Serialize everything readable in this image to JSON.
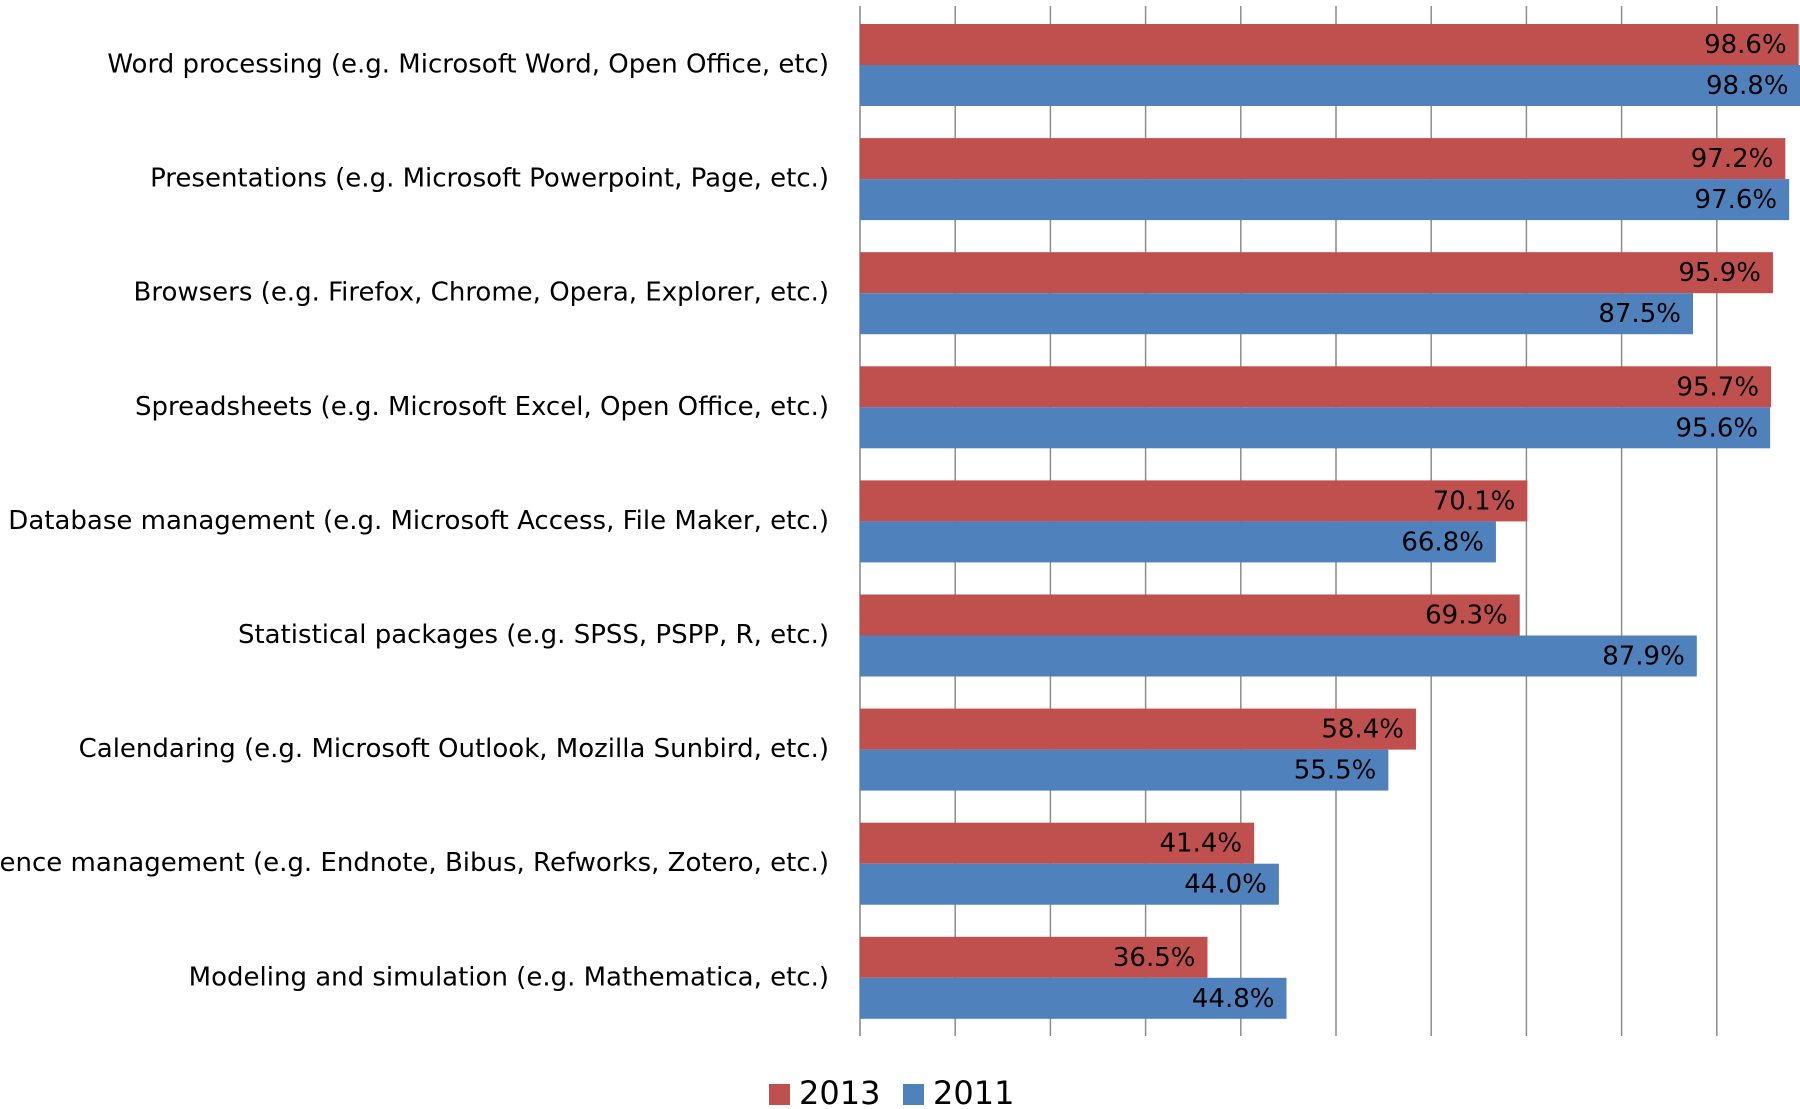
{
  "chart_data": {
    "type": "bar",
    "orientation": "horizontal",
    "categories": [
      "Word processing (e.g. Microsoft Word, Open Office, etc)",
      "Presentations (e.g. Microsoft Powerpoint, Page, etc.)",
      "Browsers (e.g. Firefox, Chrome, Opera, Explorer, etc.)",
      "Spreadsheets (e.g. Microsoft Excel, Open Office, etc.)",
      "Database management (e.g. Microsoft Access, File Maker, etc.)",
      "Statistical packages (e.g. SPSS, PSPP, R, etc.)",
      "Calendaring (e.g. Microsoft Outlook, Mozilla Sunbird, etc.)",
      "rence management (e.g. Endnote, Bibus, Refworks, Zotero, etc.)",
      "Modeling and simulation (e.g. Mathematica, etc.)"
    ],
    "series": [
      {
        "name": "2013",
        "color": "#c0504d",
        "values": [
          98.6,
          97.2,
          95.9,
          95.7,
          70.1,
          69.3,
          58.4,
          41.4,
          36.5
        ],
        "value_labels": [
          "98.6%",
          "97.2%",
          "95.9%",
          "95.7%",
          "70.1%",
          "69.3%",
          "58.4%",
          "41.4%",
          "36.5%"
        ]
      },
      {
        "name": "2011",
        "color": "#4f81bd",
        "values": [
          98.8,
          97.6,
          87.5,
          95.6,
          66.8,
          87.9,
          55.5,
          44.0,
          44.8
        ],
        "value_labels": [
          "98.8%",
          "97.6%",
          "87.5%",
          "95.6%",
          "66.8%",
          "87.9%",
          "55.5%",
          "44.0%",
          "44.8%"
        ]
      }
    ],
    "xlim": [
      0,
      100
    ],
    "xticks": [
      0,
      10,
      20,
      30,
      40,
      50,
      60,
      70,
      80,
      90
    ],
    "grid": true,
    "legend": "bottom"
  }
}
